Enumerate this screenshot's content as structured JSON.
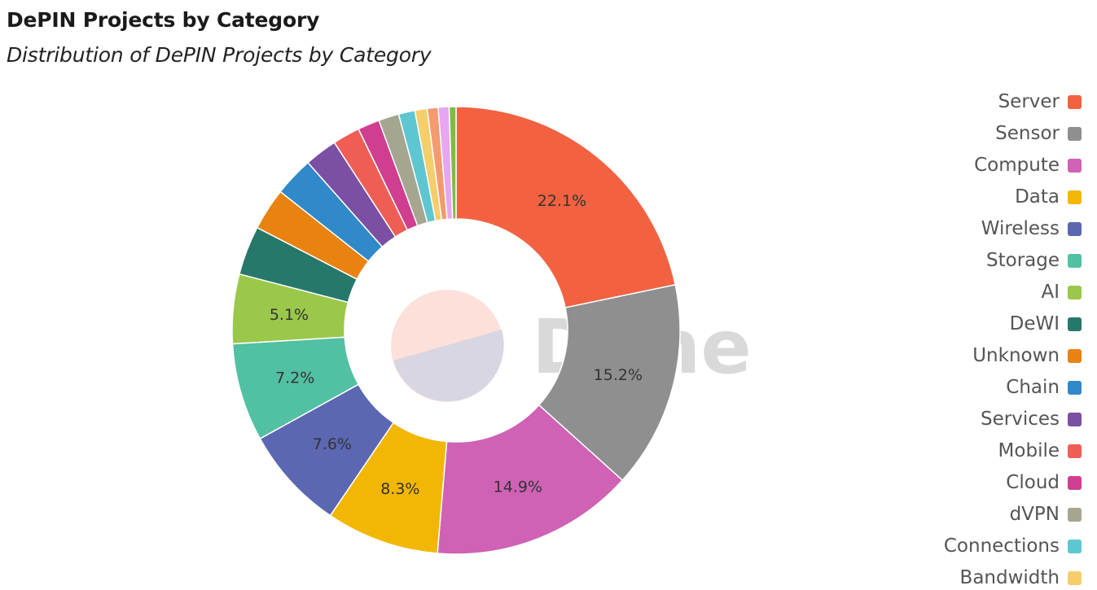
{
  "header": {
    "title": "DePIN Projects by Category",
    "subtitle": "Distribution of DePIN Projects by Category"
  },
  "watermark": "Dune",
  "chart_data": {
    "type": "pie",
    "donut": true,
    "legend_position": "right",
    "series": [
      {
        "name": "Server",
        "value": 22.1,
        "color": "#f26241",
        "label": "22.1%"
      },
      {
        "name": "Sensor",
        "value": 15.2,
        "color": "#8f8f8f",
        "label": "15.2%"
      },
      {
        "name": "Compute",
        "value": 14.9,
        "color": "#cf62b5",
        "label": "14.9%"
      },
      {
        "name": "Data",
        "value": 8.3,
        "color": "#f2b705",
        "label": "8.3%"
      },
      {
        "name": "Wireless",
        "value": 7.6,
        "color": "#5b67b1",
        "label": "7.6%"
      },
      {
        "name": "Storage",
        "value": 7.2,
        "color": "#52c0a2",
        "label": "7.2%"
      },
      {
        "name": "AI",
        "value": 5.1,
        "color": "#9ac84a",
        "label": "5.1%"
      },
      {
        "name": "DeWI",
        "value": 3.6,
        "color": "#26786a",
        "label": ""
      },
      {
        "name": "Unknown",
        "value": 3.1,
        "color": "#e88312",
        "label": ""
      },
      {
        "name": "Chain",
        "value": 2.9,
        "color": "#3089c8",
        "label": ""
      },
      {
        "name": "Services",
        "value": 2.4,
        "color": "#7b4fa3",
        "label": ""
      },
      {
        "name": "Mobile",
        "value": 2.0,
        "color": "#ef5e55",
        "label": ""
      },
      {
        "name": "Cloud",
        "value": 1.6,
        "color": "#d03e8f",
        "label": ""
      },
      {
        "name": "dVPN",
        "value": 1.5,
        "color": "#a6a690",
        "label": ""
      },
      {
        "name": "Connections",
        "value": 1.2,
        "color": "#5ec6d0",
        "label": ""
      },
      {
        "name": "Bandwidth",
        "value": 0.9,
        "color": "#f5cd6a",
        "label": ""
      },
      {
        "name": "",
        "value": 0.8,
        "color": "#f39a6f",
        "label": ""
      },
      {
        "name": "",
        "value": 0.8,
        "color": "#e6a6f0",
        "label": ""
      },
      {
        "name": "",
        "value": 0.5,
        "color": "#7dbb42",
        "label": ""
      }
    ]
  }
}
